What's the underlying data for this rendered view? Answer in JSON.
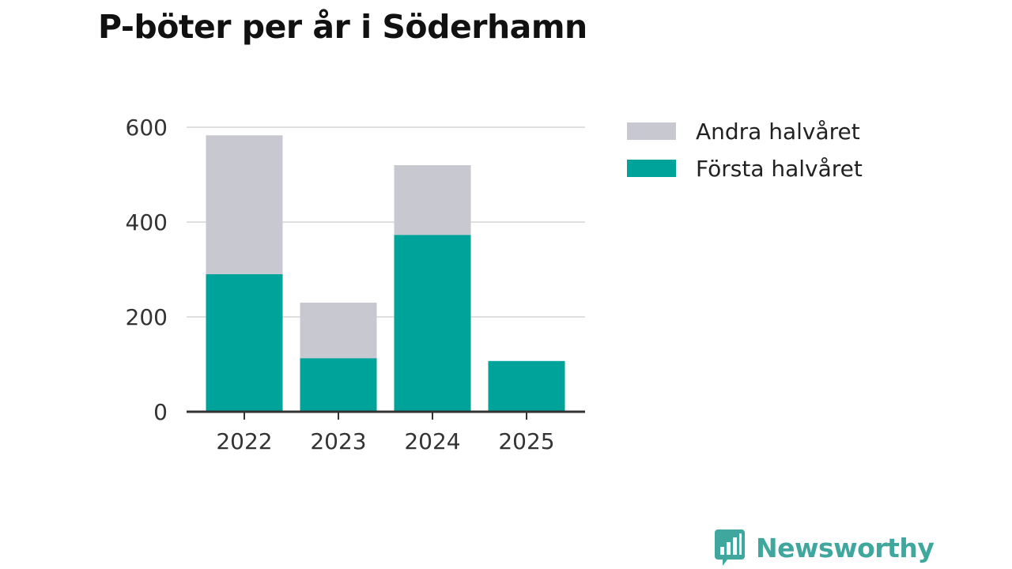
{
  "colors": {
    "forsta": "#00a39a",
    "andra": "#c8c8d0",
    "grid": "#e0e0e0",
    "axis": "#333333",
    "brand": "#3fa79d"
  },
  "chart_data": {
    "type": "bar",
    "stacked": true,
    "title": "P-böter per år i Söderhamn",
    "categories": [
      "2022",
      "2023",
      "2024",
      "2025"
    ],
    "series": [
      {
        "name": "Första halvåret",
        "color": "#00a39a",
        "values": [
          290,
          113,
          373,
          107
        ]
      },
      {
        "name": "Andra halvåret",
        "color": "#c8c8d0",
        "values": [
          293,
          117,
          147,
          0
        ]
      }
    ],
    "legend_order": [
      "Andra halvåret",
      "Första halvåret"
    ],
    "ylim": [
      0,
      600
    ],
    "yticks": [
      0,
      200,
      400,
      600
    ],
    "ytick_labels": [
      "0",
      "200",
      "400",
      "600"
    ],
    "xlabel": "",
    "ylabel": "",
    "grid": true,
    "legend_position": "right"
  },
  "brand": {
    "name": "Newsworthy",
    "icon": "bar-chart-speech-bubble-icon"
  }
}
